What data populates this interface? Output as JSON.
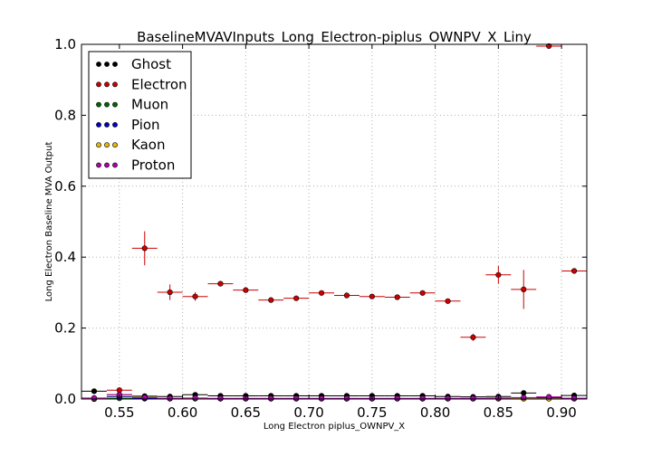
{
  "chart_data": {
    "type": "scatter",
    "title": "BaselineMVAVInputs_Long_Electron-piplus_OWNPV_X_Liny",
    "xlabel": "Long Electron piplus_OWNPV_X",
    "ylabel": "Long Electron Baseline MVA Output",
    "xlim": [
      0.52,
      0.92
    ],
    "ylim": [
      0.0,
      1.0
    ],
    "xticks": [
      "0.55",
      "0.60",
      "0.65",
      "0.70",
      "0.75",
      "0.80",
      "0.85",
      "0.90"
    ],
    "xtick_values": [
      0.55,
      0.6,
      0.65,
      0.7,
      0.75,
      0.8,
      0.85,
      0.9
    ],
    "yticks": [
      "0.0",
      "0.2",
      "0.4",
      "0.6",
      "0.8",
      "1.0"
    ],
    "ytick_values": [
      0.0,
      0.2,
      0.4,
      0.6,
      0.8,
      1.0
    ],
    "grid": true,
    "legend_position": "top-left",
    "x": [
      0.53,
      0.55,
      0.57,
      0.59,
      0.61,
      0.63,
      0.65,
      0.67,
      0.69,
      0.71,
      0.73,
      0.75,
      0.77,
      0.79,
      0.81,
      0.83,
      0.85,
      0.87,
      0.89,
      0.91
    ],
    "x_half_width": 0.01,
    "series": [
      {
        "name": "Ghost",
        "color": "#000000",
        "values": [
          0.022,
          0.012,
          0.008,
          0.007,
          0.012,
          0.009,
          0.009,
          0.009,
          0.009,
          0.009,
          0.009,
          0.009,
          0.009,
          0.009,
          0.007,
          0.006,
          0.007,
          0.017,
          0.004,
          0.01
        ],
        "yerr": [
          0.001,
          0.002,
          0.001,
          0.001,
          0.002,
          0.001,
          0.001,
          0.001,
          0.001,
          0.001,
          0.001,
          0.001,
          0.001,
          0.001,
          0.001,
          0.001,
          0.001,
          0.004,
          0.002,
          0.001
        ]
      },
      {
        "name": "Electron",
        "color": "#cc0000",
        "values": [
          0.0,
          0.025,
          0.425,
          0.301,
          0.289,
          0.325,
          0.307,
          0.279,
          0.284,
          0.299,
          0.292,
          0.289,
          0.287,
          0.299,
          0.276,
          0.174,
          0.35,
          0.309,
          0.995,
          0.361
        ],
        "yerr": [
          0.0,
          0.006,
          0.048,
          0.022,
          0.012,
          0.005,
          0.004,
          0.003,
          0.003,
          0.003,
          0.003,
          0.003,
          0.003,
          0.004,
          0.005,
          0.01,
          0.025,
          0.055,
          0.003,
          0.003
        ]
      },
      {
        "name": "Muon",
        "color": "#006400",
        "values": [
          0.0,
          0.002,
          0.001,
          0.001,
          0.001,
          0.001,
          0.001,
          0.001,
          0.001,
          0.001,
          0.001,
          0.001,
          0.001,
          0.001,
          0.001,
          0.001,
          0.001,
          0.001,
          0.001,
          0.001
        ],
        "yerr": [
          0.0,
          0.001,
          0.001,
          0.001,
          0.001,
          0.001,
          0.001,
          0.001,
          0.001,
          0.001,
          0.001,
          0.001,
          0.001,
          0.001,
          0.001,
          0.001,
          0.001,
          0.001,
          0.001,
          0.001
        ]
      },
      {
        "name": "Pion",
        "color": "#0000cc",
        "values": [
          0.002,
          0.006,
          0.002,
          0.001,
          0.002,
          0.001,
          0.001,
          0.001,
          0.001,
          0.001,
          0.001,
          0.001,
          0.001,
          0.001,
          0.001,
          0.001,
          0.001,
          0.002,
          0.002,
          0.002
        ],
        "yerr": [
          0.001,
          0.002,
          0.001,
          0.001,
          0.001,
          0.001,
          0.001,
          0.001,
          0.001,
          0.001,
          0.001,
          0.001,
          0.001,
          0.001,
          0.001,
          0.001,
          0.001,
          0.001,
          0.001,
          0.001
        ]
      },
      {
        "name": "Kaon",
        "color": "#e6b800",
        "values": [
          0.001,
          0.01,
          0.005,
          0.002,
          0.002,
          0.001,
          0.001,
          0.001,
          0.001,
          0.001,
          0.001,
          0.001,
          0.001,
          0.001,
          0.001,
          0.001,
          0.001,
          0.001,
          0.001,
          0.001
        ],
        "yerr": [
          0.001,
          0.002,
          0.001,
          0.001,
          0.001,
          0.001,
          0.001,
          0.001,
          0.001,
          0.001,
          0.001,
          0.001,
          0.001,
          0.001,
          0.001,
          0.001,
          0.001,
          0.001,
          0.001,
          0.001
        ]
      },
      {
        "name": "Proton",
        "color": "#b000b0",
        "values": [
          0.003,
          0.012,
          0.004,
          0.002,
          0.003,
          0.002,
          0.002,
          0.002,
          0.002,
          0.002,
          0.002,
          0.002,
          0.002,
          0.002,
          0.002,
          0.002,
          0.003,
          0.004,
          0.006,
          0.002
        ],
        "yerr": [
          0.001,
          0.002,
          0.001,
          0.001,
          0.001,
          0.001,
          0.001,
          0.001,
          0.001,
          0.001,
          0.001,
          0.001,
          0.001,
          0.001,
          0.001,
          0.001,
          0.001,
          0.001,
          0.002,
          0.001
        ]
      }
    ]
  }
}
